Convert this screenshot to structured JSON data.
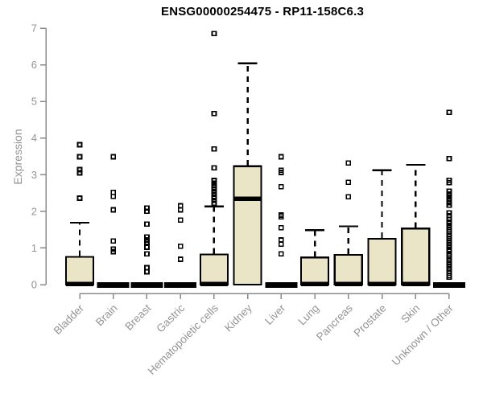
{
  "title": "ENSG00000254475 - RP11-158C6.3",
  "chart_data": {
    "type": "boxplot",
    "title": "ENSG00000254475 - RP11-158C6.3",
    "ylabel": "Expression",
    "xlabel": "",
    "ylim": [
      0,
      7
    ],
    "yticks": [
      0,
      1,
      2,
      3,
      4,
      5,
      6,
      7
    ],
    "grid": false,
    "legend": "none",
    "categories": [
      "Bladder",
      "Brain",
      "Breast",
      "Gastric",
      "Hematopoietic cells",
      "Kidney",
      "Liver",
      "Lung",
      "Pancreas",
      "Prostate",
      "Skin",
      "Unknown / Other"
    ],
    "series": [
      {
        "name": "Bladder",
        "low": 0,
        "q1": 0,
        "median": 0.02,
        "q3": 0.76,
        "high": 1.69,
        "outliers": [
          2.36,
          3.05,
          3.14,
          3.49,
          3.82
        ]
      },
      {
        "name": "Brain",
        "low": 0,
        "q1": 0,
        "median": 0,
        "q3": 0,
        "high": 0,
        "outliers": [
          0.9,
          0.97,
          1.19,
          2.04,
          2.41,
          2.52,
          3.49
        ]
      },
      {
        "name": "Breast",
        "low": 0,
        "q1": 0,
        "median": 0,
        "q3": 0,
        "high": 0,
        "outliers": [
          0.35,
          0.46,
          0.84,
          1.02,
          1.16,
          1.22,
          1.3,
          1.65,
          2.0,
          2.09
        ]
      },
      {
        "name": "Gastric",
        "low": 0,
        "q1": 0,
        "median": 0,
        "q3": 0,
        "high": 0,
        "outliers": [
          0.69,
          1.05,
          1.76,
          2.04,
          2.15
        ]
      },
      {
        "name": "Hematopoietic cells",
        "low": 0,
        "q1": 0,
        "median": 0.02,
        "q3": 0.82,
        "high": 2.13,
        "outliers": [
          2.22,
          2.3,
          2.38,
          2.46,
          2.54,
          2.62,
          2.7,
          2.77,
          2.84,
          3.19,
          3.7,
          4.67,
          6.85
        ]
      },
      {
        "name": "Kidney",
        "low": 0,
        "q1": 0,
        "median": 2.34,
        "q3": 3.23,
        "high": 6.04,
        "outliers": []
      },
      {
        "name": "Liver",
        "low": 0,
        "q1": 0,
        "median": 0,
        "q3": 0,
        "high": 0,
        "outliers": [
          0.84,
          1.1,
          1.22,
          1.55,
          1.85,
          1.9,
          2.67,
          3.06,
          3.12,
          3.49
        ]
      },
      {
        "name": "Lung",
        "low": 0,
        "q1": 0,
        "median": 0.02,
        "q3": 0.74,
        "high": 1.49,
        "outliers": []
      },
      {
        "name": "Pancreas",
        "low": 0,
        "q1": 0,
        "median": 0.02,
        "q3": 0.81,
        "high": 1.59,
        "outliers": [
          2.4,
          2.79,
          3.32
        ]
      },
      {
        "name": "Prostate",
        "low": 0,
        "q1": 0,
        "median": 0.02,
        "q3": 1.25,
        "high": 3.12,
        "outliers": []
      },
      {
        "name": "Skin",
        "low": 0,
        "q1": 0,
        "median": 0.02,
        "q3": 1.53,
        "high": 3.27,
        "outliers": []
      },
      {
        "name": "Unknown / Other",
        "low": 0,
        "q1": 0,
        "median": 0,
        "q3": 0,
        "high": 0,
        "outliers": [
          0.2,
          0.25,
          0.31,
          0.37,
          0.43,
          0.49,
          0.55,
          0.61,
          0.67,
          0.73,
          0.79,
          0.92,
          0.96,
          1.02,
          1.08,
          1.14,
          1.2,
          1.26,
          1.32,
          1.38,
          1.44,
          1.5,
          1.56,
          1.62,
          1.7,
          1.78,
          1.88,
          1.96,
          2.17,
          2.24,
          2.32,
          2.4,
          2.47,
          2.55,
          2.78,
          2.85,
          3.44,
          4.7
        ]
      }
    ],
    "style": {
      "box_fill": "#EBE5C8",
      "box_border": "#000000",
      "median_color": "#000000",
      "whisker_color": "#000000",
      "outlier_color": "#000000",
      "axis_color": "#8A8A8A",
      "label_color": "#949494",
      "title_color": "#000000",
      "background": "#FFFFFF"
    }
  }
}
